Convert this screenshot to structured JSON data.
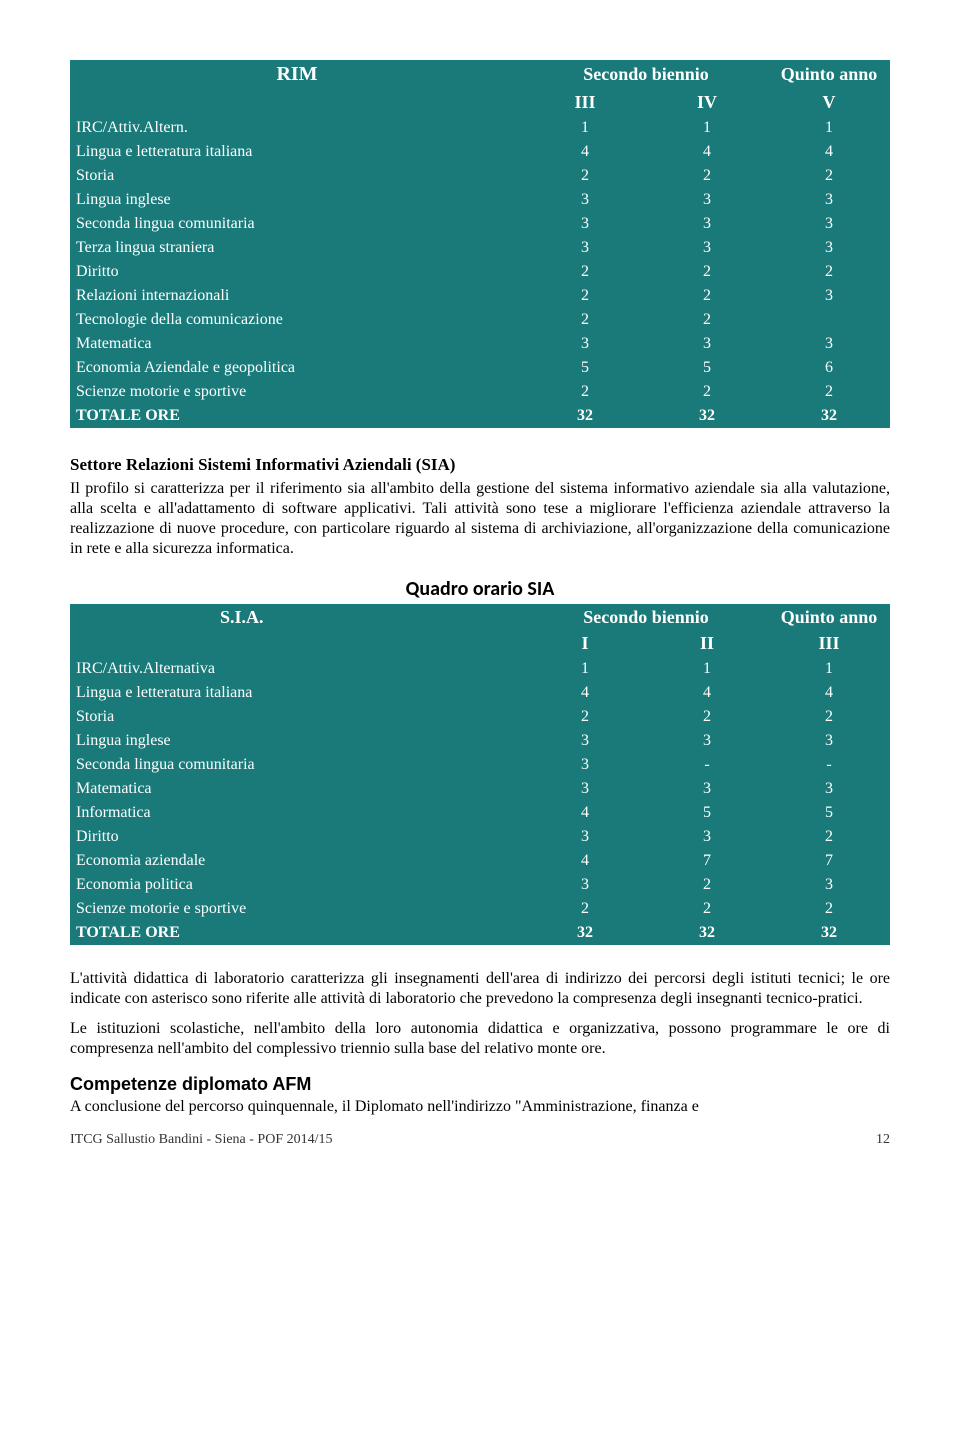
{
  "colors": {
    "teal": "#1a7a7a",
    "white": "#ffffff",
    "text": "#000000"
  },
  "rim": {
    "title": "RIM",
    "period1": "Secondo biennio",
    "period2": "Quinto anno",
    "cols": {
      "c1": "III",
      "c2": "IV",
      "c3": "V"
    },
    "rows": [
      {
        "label": "IRC/Attiv.Altern.",
        "v": [
          "1",
          "1",
          "1"
        ]
      },
      {
        "label": "Lingua e letteratura  italiana",
        "v": [
          "4",
          "4",
          "4"
        ]
      },
      {
        "label": "Storia",
        "v": [
          "2",
          "2",
          "2"
        ]
      },
      {
        "label": "Lingua inglese",
        "v": [
          "3",
          "3",
          "3"
        ]
      },
      {
        "label": "Seconda lingua comunitaria",
        "v": [
          "3",
          "3",
          "3"
        ]
      },
      {
        "label": "Terza lingua straniera",
        "v": [
          "3",
          "3",
          "3"
        ]
      },
      {
        "label": "Diritto",
        "v": [
          "2",
          "2",
          "2"
        ]
      },
      {
        "label": "Relazioni internazionali",
        "v": [
          "2",
          "2",
          "3"
        ]
      },
      {
        "label": "Tecnologie della comunicazione",
        "v": [
          "2",
          "2",
          ""
        ]
      },
      {
        "label": "Matematica",
        "v": [
          "3",
          "3",
          "3"
        ]
      },
      {
        "label": "Economia Aziendale e geopolitica",
        "v": [
          "5",
          "5",
          "6"
        ]
      },
      {
        "label": "Scienze motorie e sportive",
        "v": [
          "2",
          "2",
          "2"
        ]
      },
      {
        "label": "TOTALE ORE",
        "v": [
          "32",
          "32",
          "32"
        ],
        "bold": true
      }
    ]
  },
  "sia_section": {
    "heading": "Settore Relazioni Sistemi Informativi Aziendali (SIA)",
    "para": "Il profilo si caratterizza per il riferimento sia all'ambito della gestione del sistema informativo aziendale sia alla valutazione, alla scelta e all'adattamento di software applicativi. Tali attività sono tese a migliorare l'efficienza aziendale attraverso la realizzazione di nuove procedure, con particolare riguardo al sistema di archiviazione, all'organizzazione della comunicazione in rete e alla sicurezza informatica."
  },
  "sia_table": {
    "quadro": "Quadro orario SIA",
    "title": "S.I.A.",
    "period1": "Secondo biennio",
    "period2": "Quinto anno",
    "cols": {
      "c1": "I",
      "c2": "II",
      "c3": "III"
    },
    "rows": [
      {
        "label": "IRC/Attiv.Alternativa",
        "v": [
          "1",
          "1",
          "1"
        ]
      },
      {
        "label": "Lingua e letteratura italiana",
        "v": [
          "4",
          "4",
          "4"
        ]
      },
      {
        "label": "Storia",
        "v": [
          "2",
          "2",
          "2"
        ]
      },
      {
        "label": "Lingua  inglese",
        "v": [
          "3",
          "3",
          "3"
        ]
      },
      {
        "label": "Seconda lingua comunitaria",
        "v": [
          "3",
          "-",
          "-"
        ]
      },
      {
        "label": "Matematica",
        "v": [
          "3",
          "3",
          "3"
        ]
      },
      {
        "label": "Informatica",
        "v": [
          "4",
          "5",
          "5"
        ]
      },
      {
        "label": "Diritto",
        "v": [
          "3",
          "3",
          "2"
        ]
      },
      {
        "label": "Economia aziendale",
        "v": [
          "4",
          "7",
          "7"
        ]
      },
      {
        "label": "Economia politica",
        "v": [
          "3",
          "2",
          "3"
        ]
      },
      {
        "label": "Scienze motorie e sportive",
        "v": [
          "2",
          "2",
          "2"
        ]
      },
      {
        "label": "TOTALE ORE",
        "v": [
          "32",
          "32",
          "32"
        ],
        "bold": true
      }
    ]
  },
  "post_para1": "L'attività didattica di laboratorio caratterizza gli insegnamenti dell'area di indirizzo dei percorsi degli istituti tecnici; le ore indicate con asterisco sono riferite alle attività di laboratorio che prevedono la compresenza degli insegnanti tecnico-pratici.",
  "post_para2": "Le istituzioni scolastiche, nell'ambito della loro autonomia didattica e organizzativa, possono programmare le ore di compresenza nell'ambito del complessivo triennio sulla base del relativo monte ore.",
  "comp": {
    "title": "Competenze diplomato AFM",
    "text": "A conclusione del percorso quinquennale, il Diplomato nell'indirizzo \"Amministrazione, finanza e"
  },
  "footer": {
    "left": "ITCG  Sallustio Bandini  - Siena -  POF 2014/15",
    "page": "12"
  }
}
